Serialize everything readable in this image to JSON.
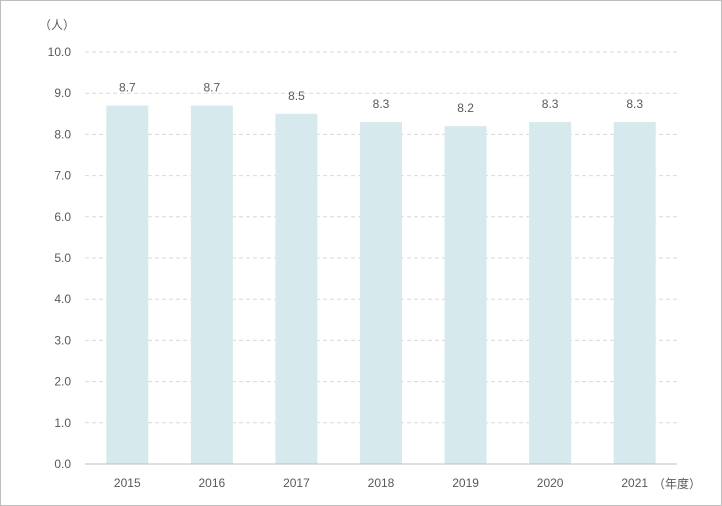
{
  "chart_data": {
    "type": "bar",
    "categories": [
      "2015",
      "2016",
      "2017",
      "2018",
      "2019",
      "2020",
      "2021"
    ],
    "values": [
      8.7,
      8.7,
      8.5,
      8.3,
      8.2,
      8.3,
      8.3
    ],
    "data_labels": [
      "8.7",
      "8.7",
      "8.5",
      "8.3",
      "8.2",
      "8.3",
      "8.3"
    ],
    "y_ticks": [
      "0.0",
      "1.0",
      "2.0",
      "3.0",
      "4.0",
      "5.0",
      "6.0",
      "7.0",
      "8.0",
      "9.0",
      "10.0"
    ],
    "ylim": [
      0,
      10
    ],
    "y_unit": "（人）",
    "x_unit": "（年度）",
    "title": "",
    "xlabel": "",
    "ylabel": "",
    "grid": true,
    "legend": "none",
    "colors": {
      "bar": "#d6e9ec",
      "grid": "#d9d9d9",
      "axis": "#bfbfbf",
      "text": "#595959"
    }
  }
}
